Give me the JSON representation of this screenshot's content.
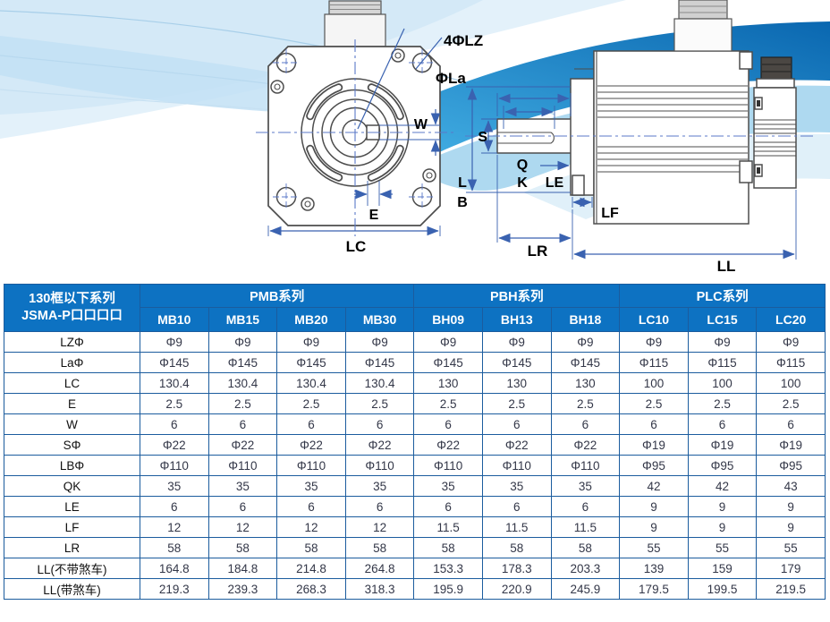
{
  "diagram": {
    "front_view": {
      "labels": {
        "lz": "4ΦLZ",
        "la": "ΦLa",
        "w": "W",
        "e": "E",
        "lc": "LC"
      }
    },
    "side_view": {
      "labels": {
        "s": "S",
        "q": "Q",
        "k": "K",
        "le": "LE",
        "l": "L",
        "b": "B",
        "lf": "LF",
        "lr": "LR",
        "ll": "LL"
      }
    }
  },
  "table": {
    "corner": {
      "line1": "130框以下系列",
      "line2": "JSMA-P口口口口"
    },
    "groups": [
      {
        "label": "PMB系列",
        "span": 4
      },
      {
        "label": "PBH系列",
        "span": 3
      },
      {
        "label": "PLC系列",
        "span": 3
      }
    ],
    "columns": [
      "MB10",
      "MB15",
      "MB20",
      "MB30",
      "BH09",
      "BH13",
      "BH18",
      "LC10",
      "LC15",
      "LC20"
    ],
    "rows": [
      {
        "label": "LZΦ",
        "values": [
          "Φ9",
          "Φ9",
          "Φ9",
          "Φ9",
          "Φ9",
          "Φ9",
          "Φ9",
          "Φ9",
          "Φ9",
          "Φ9"
        ]
      },
      {
        "label": "LaΦ",
        "values": [
          "Φ145",
          "Φ145",
          "Φ145",
          "Φ145",
          "Φ145",
          "Φ145",
          "Φ145",
          "Φ115",
          "Φ115",
          "Φ115"
        ]
      },
      {
        "label": "LC",
        "values": [
          "130.4",
          "130.4",
          "130.4",
          "130.4",
          "130",
          "130",
          "130",
          "100",
          "100",
          "100"
        ]
      },
      {
        "label": "E",
        "values": [
          "2.5",
          "2.5",
          "2.5",
          "2.5",
          "2.5",
          "2.5",
          "2.5",
          "2.5",
          "2.5",
          "2.5"
        ]
      },
      {
        "label": "W",
        "values": [
          "6",
          "6",
          "6",
          "6",
          "6",
          "6",
          "6",
          "6",
          "6",
          "6"
        ]
      },
      {
        "label": "SΦ",
        "values": [
          "Φ22",
          "Φ22",
          "Φ22",
          "Φ22",
          "Φ22",
          "Φ22",
          "Φ22",
          "Φ19",
          "Φ19",
          "Φ19"
        ]
      },
      {
        "label": "LBΦ",
        "values": [
          "Φ110",
          "Φ110",
          "Φ110",
          "Φ110",
          "Φ110",
          "Φ110",
          "Φ110",
          "Φ95",
          "Φ95",
          "Φ95"
        ]
      },
      {
        "label": "QK",
        "values": [
          "35",
          "35",
          "35",
          "35",
          "35",
          "35",
          "35",
          "42",
          "42",
          "43"
        ]
      },
      {
        "label": "LE",
        "values": [
          "6",
          "6",
          "6",
          "6",
          "6",
          "6",
          "6",
          "9",
          "9",
          "9"
        ]
      },
      {
        "label": "LF",
        "values": [
          "12",
          "12",
          "12",
          "12",
          "11.5",
          "11.5",
          "11.5",
          "9",
          "9",
          "9"
        ]
      },
      {
        "label": "LR",
        "values": [
          "58",
          "58",
          "58",
          "58",
          "58",
          "58",
          "58",
          "55",
          "55",
          "55"
        ]
      },
      {
        "label": "LL(不带煞车)",
        "values": [
          "164.8",
          "184.8",
          "214.8",
          "264.8",
          "153.3",
          "178.3",
          "203.3",
          "139",
          "159",
          "179"
        ]
      },
      {
        "label": "LL(带煞车)",
        "values": [
          "219.3",
          "239.3",
          "268.3",
          "318.3",
          "195.9",
          "220.9",
          "245.9",
          "179.5",
          "199.5",
          "219.5"
        ]
      }
    ]
  },
  "colors": {
    "header_bg": "#0d72c2",
    "table_border": "#1b5c9e",
    "wave_strong": "#0e6db6",
    "wave_light": "#cfe7f6",
    "dimension_blue": "#3a62b0"
  }
}
